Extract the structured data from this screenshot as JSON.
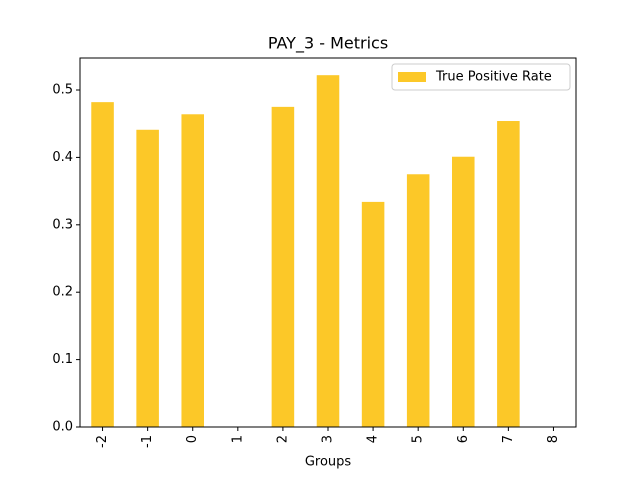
{
  "chart_data": {
    "type": "bar",
    "title": "PAY_3 - Metrics",
    "x_label": "Groups",
    "categories": [
      "-2",
      "-1",
      "0",
      "1",
      "2",
      "3",
      "4",
      "5",
      "6",
      "7",
      "8"
    ],
    "series": [
      {
        "name": "True Positive Rate",
        "color": "#fcc828",
        "values": [
          0.482,
          0.441,
          0.464,
          0,
          0.475,
          0.522,
          0.334,
          0.375,
          0.401,
          0.454,
          0
        ]
      }
    ],
    "ylim": [
      0,
      0.5475
    ],
    "yticks": [
      {
        "value": 0,
        "label": "0.0"
      },
      0.1,
      0.2,
      0.3,
      0.4,
      0.5
    ],
    "legend": "upper-right"
  }
}
